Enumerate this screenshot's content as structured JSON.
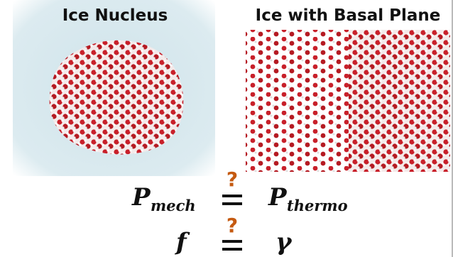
{
  "panels": [
    {
      "title": "Ice Nucleus"
    },
    {
      "title": "Ice with Basal Plane"
    }
  ],
  "equations": [
    {
      "left": {
        "symbol": "P",
        "subscript": "mech"
      },
      "relation": "?",
      "right": {
        "symbol": "P",
        "subscript": "thermo"
      }
    },
    {
      "left": {
        "symbol": "f"
      },
      "relation": "?",
      "right": {
        "symbol": "γ"
      }
    }
  ]
}
